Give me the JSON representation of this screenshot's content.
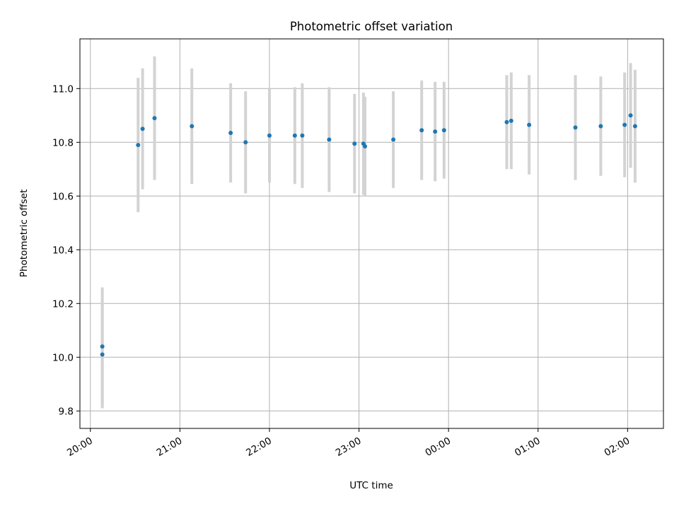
{
  "chart_data": {
    "type": "scatter",
    "title": "Photometric offset variation",
    "xlabel": "UTC time",
    "ylabel": "Photometric offset",
    "grid": true,
    "colors": {
      "point": "#1f77b4",
      "errorbar": "#d3d3d3"
    },
    "x_unit": "UTC hh:mm",
    "xlim": [
      "19:53",
      "02:24"
    ],
    "ylim": [
      9.735,
      11.185
    ],
    "x_ticks": [
      "20:00",
      "21:00",
      "22:00",
      "23:00",
      "00:00",
      "01:00",
      "02:00"
    ],
    "y_ticks": [
      "9.8",
      "10.0",
      "10.2",
      "10.4",
      "10.6",
      "10.8",
      "11.0"
    ],
    "series": [
      {
        "points": [
          {
            "time": "20:08",
            "y": 10.01,
            "err": 0.2
          },
          {
            "time": "20:08",
            "y": 10.04,
            "err": 0.22
          },
          {
            "time": "20:32",
            "y": 10.79,
            "err": 0.25
          },
          {
            "time": "20:35",
            "y": 10.85,
            "err": 0.225
          },
          {
            "time": "20:43",
            "y": 10.89,
            "err": 0.23
          },
          {
            "time": "21:08",
            "y": 10.86,
            "err": 0.215
          },
          {
            "time": "21:34",
            "y": 10.835,
            "err": 0.185
          },
          {
            "time": "21:44",
            "y": 10.8,
            "err": 0.19
          },
          {
            "time": "22:00",
            "y": 10.825,
            "err": 0.175
          },
          {
            "time": "22:17",
            "y": 10.825,
            "err": 0.18
          },
          {
            "time": "22:22",
            "y": 10.825,
            "err": 0.195
          },
          {
            "time": "22:40",
            "y": 10.81,
            "err": 0.195
          },
          {
            "time": "22:57",
            "y": 10.795,
            "err": 0.185
          },
          {
            "time": "23:03",
            "y": 10.795,
            "err": 0.19
          },
          {
            "time": "23:04",
            "y": 10.785,
            "err": 0.185
          },
          {
            "time": "23:23",
            "y": 10.81,
            "err": 0.18
          },
          {
            "time": "23:42",
            "y": 10.845,
            "err": 0.185
          },
          {
            "time": "23:51",
            "y": 10.84,
            "err": 0.185
          },
          {
            "time": "23:57",
            "y": 10.845,
            "err": 0.18
          },
          {
            "time": "00:39",
            "y": 10.875,
            "err": 0.175
          },
          {
            "time": "00:42",
            "y": 10.88,
            "err": 0.18
          },
          {
            "time": "00:54",
            "y": 10.865,
            "err": 0.185
          },
          {
            "time": "01:25",
            "y": 10.855,
            "err": 0.195
          },
          {
            "time": "01:42",
            "y": 10.86,
            "err": 0.185
          },
          {
            "time": "01:58",
            "y": 10.865,
            "err": 0.195
          },
          {
            "time": "02:02",
            "y": 10.9,
            "err": 0.195
          },
          {
            "time": "02:05",
            "y": 10.86,
            "err": 0.21
          }
        ]
      }
    ]
  }
}
